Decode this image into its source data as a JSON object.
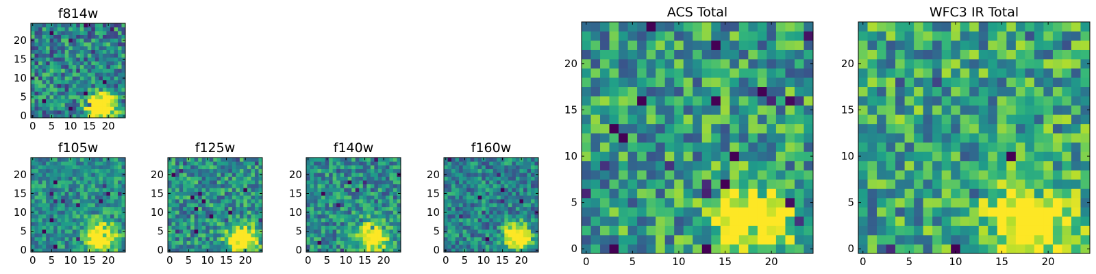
{
  "figure": {
    "layout": "stamp grid of heatmap panels",
    "colormap": "viridis"
  },
  "chart_data": [
    {
      "type": "heatmap",
      "id": "f814w",
      "title": "f814w",
      "grid": [
        25,
        25
      ],
      "xlim": [
        -0.5,
        24.5
      ],
      "ylim": [
        -0.5,
        24.5
      ],
      "xticks": [
        0,
        5,
        10,
        15,
        20
      ],
      "yticks": [
        0,
        5,
        10,
        15,
        20
      ],
      "blob": {
        "x": 18,
        "y": 2.5,
        "sigma": 2.6,
        "amp": 0.95
      },
      "noise": 0.3,
      "base": 0.45,
      "seed": 11
    },
    {
      "type": "heatmap",
      "id": "f105w",
      "title": "f105w",
      "grid": [
        25,
        25
      ],
      "xlim": [
        -0.5,
        24.5
      ],
      "ylim": [
        -0.5,
        24.5
      ],
      "xticks": [
        0,
        5,
        10,
        15,
        20
      ],
      "yticks": [
        0,
        5,
        10,
        15,
        20
      ],
      "blob": {
        "x": 18,
        "y": 3.5,
        "sigma": 2.8,
        "amp": 0.8
      },
      "noise": 0.22,
      "base": 0.5,
      "seed": 23
    },
    {
      "type": "heatmap",
      "id": "f125w",
      "title": "f125w",
      "grid": [
        25,
        25
      ],
      "xlim": [
        -0.5,
        24.5
      ],
      "ylim": [
        -0.5,
        24.5
      ],
      "xticks": [
        0,
        5,
        10,
        15,
        20
      ],
      "yticks": [
        0,
        5,
        10,
        15,
        20
      ],
      "blob": {
        "x": 19,
        "y": 2.5,
        "sigma": 2.8,
        "amp": 0.8
      },
      "noise": 0.26,
      "base": 0.5,
      "seed": 37
    },
    {
      "type": "heatmap",
      "id": "f140w",
      "title": "f140w",
      "grid": [
        25,
        25
      ],
      "xlim": [
        -0.5,
        24.5
      ],
      "ylim": [
        -0.5,
        24.5
      ],
      "xticks": [
        0,
        5,
        10,
        15,
        20
      ],
      "yticks": [
        0,
        5,
        10,
        15,
        20
      ],
      "blob": {
        "x": 17,
        "y": 3.5,
        "sigma": 3.0,
        "amp": 0.75
      },
      "noise": 0.25,
      "base": 0.48,
      "seed": 41
    },
    {
      "type": "heatmap",
      "id": "f160w",
      "title": "f160w",
      "grid": [
        25,
        25
      ],
      "xlim": [
        -0.5,
        24.5
      ],
      "ylim": [
        -0.5,
        24.5
      ],
      "xticks": [
        0,
        5,
        10,
        15,
        20
      ],
      "yticks": [
        0,
        5,
        10,
        15,
        20
      ],
      "blob": {
        "x": 19,
        "y": 3.5,
        "sigma": 2.5,
        "amp": 0.85
      },
      "noise": 0.24,
      "base": 0.45,
      "seed": 53
    },
    {
      "type": "heatmap",
      "id": "acs-total",
      "title": "ACS Total",
      "grid": [
        25,
        25
      ],
      "xlim": [
        -0.5,
        24.5
      ],
      "ylim": [
        -0.5,
        24.5
      ],
      "xticks": [
        0,
        5,
        10,
        15,
        20
      ],
      "yticks": [
        0,
        5,
        10,
        15,
        20
      ],
      "blob": {
        "x": 18,
        "y": 3,
        "sigma": 2.6,
        "amp": 0.75
      },
      "noise": 0.3,
      "base": 0.55,
      "seed": 67
    },
    {
      "type": "heatmap",
      "id": "wfc3-ir-total",
      "title": "WFC3 IR Total",
      "grid": [
        25,
        25
      ],
      "xlim": [
        -0.5,
        24.5
      ],
      "ylim": [
        -0.5,
        24.5
      ],
      "xticks": [
        0,
        5,
        10,
        15,
        20
      ],
      "yticks": [
        0,
        5,
        10,
        15,
        20
      ],
      "blob": {
        "x": 18,
        "y": 3,
        "sigma": 3.0,
        "amp": 0.7
      },
      "noise": 0.3,
      "base": 0.58,
      "seed": 79
    }
  ]
}
